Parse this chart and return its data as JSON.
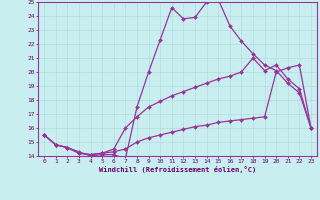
{
  "xlabel": "Windchill (Refroidissement éolien,°C)",
  "background_color": "#c8eef0",
  "grid_color": "#b0dde0",
  "line_color": "#993399",
  "xlim": [
    -0.5,
    23.5
  ],
  "ylim": [
    14,
    25
  ],
  "yticks": [
    14,
    15,
    16,
    17,
    18,
    19,
    20,
    21,
    22,
    23,
    24,
    25
  ],
  "xticks": [
    0,
    1,
    2,
    3,
    4,
    5,
    6,
    7,
    8,
    9,
    10,
    11,
    12,
    13,
    14,
    15,
    16,
    17,
    18,
    19,
    20,
    21,
    22,
    23
  ],
  "line1_x": [
    0,
    1,
    2,
    3,
    4,
    5,
    6,
    7,
    8,
    9,
    10,
    11,
    12,
    13,
    14,
    15,
    16,
    17,
    18,
    19,
    20,
    21,
    22,
    23
  ],
  "line1_y": [
    15.5,
    14.8,
    14.6,
    14.3,
    14.0,
    14.1,
    14.1,
    13.8,
    17.5,
    20.0,
    22.3,
    24.6,
    23.8,
    23.9,
    25.0,
    25.2,
    23.3,
    22.2,
    21.3,
    20.5,
    20.1,
    19.2,
    18.5,
    16.0
  ],
  "line2_x": [
    0,
    1,
    2,
    3,
    4,
    5,
    6,
    7,
    8,
    9,
    10,
    11,
    12,
    13,
    14,
    15,
    16,
    17,
    18,
    19,
    20,
    21,
    22,
    23
  ],
  "line2_y": [
    15.5,
    14.8,
    14.6,
    14.2,
    14.1,
    14.2,
    14.5,
    16.0,
    16.8,
    17.5,
    17.9,
    18.3,
    18.6,
    18.9,
    19.2,
    19.5,
    19.7,
    20.0,
    21.0,
    20.1,
    20.5,
    19.5,
    18.8,
    16.0
  ],
  "line3_x": [
    0,
    1,
    2,
    3,
    4,
    5,
    6,
    7,
    8,
    9,
    10,
    11,
    12,
    13,
    14,
    15,
    16,
    17,
    18,
    19,
    20,
    21,
    22,
    23
  ],
  "line3_y": [
    15.5,
    14.8,
    14.6,
    14.2,
    14.1,
    14.2,
    14.3,
    14.5,
    15.0,
    15.3,
    15.5,
    15.7,
    15.9,
    16.1,
    16.2,
    16.4,
    16.5,
    16.6,
    16.7,
    16.8,
    20.0,
    20.3,
    20.5,
    16.0
  ]
}
